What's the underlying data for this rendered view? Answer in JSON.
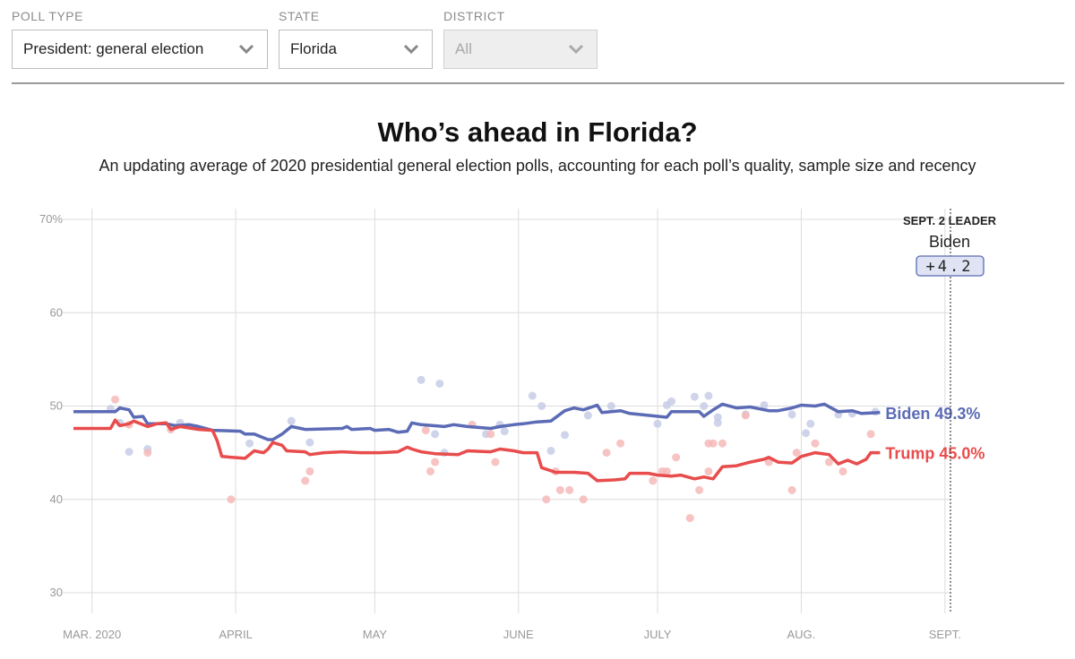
{
  "filters": {
    "poll_type": {
      "label": "POLL TYPE",
      "value": "President: general election"
    },
    "state": {
      "label": "STATE",
      "value": "Florida"
    },
    "district": {
      "label": "DISTRICT",
      "value": "All"
    }
  },
  "colors": {
    "biden": "#5b6bb5",
    "trump": "#e84c4c",
    "biden_dot": "#c7cce6",
    "trump_dot": "#f6b8b8",
    "grid": "#dcdcdc"
  },
  "chart_data": {
    "type": "line",
    "title": "Who’s ahead in Florida?",
    "subtitle": "An updating average of 2020 presidential general election polls, accounting for each poll’s quality, sample size and recency",
    "ylim": [
      30,
      70
    ],
    "yticks": [
      30,
      40,
      50,
      60,
      70
    ],
    "ytick_labels": [
      "30",
      "40",
      "50",
      "60",
      "70%"
    ],
    "x_domain": [
      "2020-02-26",
      "2020-09-02"
    ],
    "months": [
      {
        "label": "MAR. 2020",
        "date": "2020-03-01"
      },
      {
        "label": "APRIL",
        "date": "2020-04-01"
      },
      {
        "label": "MAY",
        "date": "2020-05-01"
      },
      {
        "label": "JUNE",
        "date": "2020-06-01"
      },
      {
        "label": "JULY",
        "date": "2020-07-01"
      },
      {
        "label": "AUG.",
        "date": "2020-08-01"
      },
      {
        "label": "SEPT.",
        "date": "2020-09-01"
      }
    ],
    "series": [
      {
        "name": "Biden",
        "end_label": "Biden 49.3%",
        "end_value": 49.3,
        "points": [
          [
            0,
            49.4
          ],
          [
            9,
            49.4
          ],
          [
            10,
            49.8
          ],
          [
            12,
            49.6
          ],
          [
            13,
            48.8
          ],
          [
            15,
            48.9
          ],
          [
            16,
            48.1
          ],
          [
            18,
            48.1
          ],
          [
            20,
            48.1
          ],
          [
            22,
            47.9
          ],
          [
            25,
            48.0
          ],
          [
            27,
            47.8
          ],
          [
            30,
            47.4
          ],
          [
            36,
            47.3
          ],
          [
            37,
            47.0
          ],
          [
            39,
            47.0
          ],
          [
            40,
            46.8
          ],
          [
            42,
            46.4
          ],
          [
            43,
            46.4
          ],
          [
            45,
            47.0
          ],
          [
            46,
            47.4
          ],
          [
            47,
            47.8
          ],
          [
            49,
            47.6
          ],
          [
            50,
            47.5
          ],
          [
            58,
            47.6
          ],
          [
            59,
            47.8
          ],
          [
            60,
            47.5
          ],
          [
            64,
            47.6
          ],
          [
            65,
            47.4
          ],
          [
            68,
            47.5
          ],
          [
            70,
            47.2
          ],
          [
            72,
            47.3
          ],
          [
            73,
            48.2
          ],
          [
            75,
            48.0
          ],
          [
            80,
            47.8
          ],
          [
            82,
            48.0
          ],
          [
            85,
            47.8
          ],
          [
            90,
            47.6
          ],
          [
            92,
            47.8
          ],
          [
            95,
            48.0
          ],
          [
            97,
            48.1
          ],
          [
            100,
            48.3
          ],
          [
            103,
            48.4
          ],
          [
            106,
            49.5
          ],
          [
            108,
            49.8
          ],
          [
            110,
            49.6
          ],
          [
            113,
            50.1
          ],
          [
            114,
            49.3
          ],
          [
            118,
            49.5
          ],
          [
            120,
            49.2
          ],
          [
            124,
            49.0
          ],
          [
            128,
            48.8
          ],
          [
            129,
            49.4
          ],
          [
            135,
            49.4
          ],
          [
            136,
            48.9
          ],
          [
            138,
            49.6
          ],
          [
            140,
            50.2
          ],
          [
            143,
            49.8
          ],
          [
            146,
            49.9
          ],
          [
            150,
            49.5
          ],
          [
            152,
            49.5
          ],
          [
            155,
            49.8
          ],
          [
            157,
            50.1
          ],
          [
            160,
            50.0
          ],
          [
            162,
            50.2
          ],
          [
            165,
            49.4
          ],
          [
            168,
            49.5
          ],
          [
            170,
            49.2
          ],
          [
            174,
            49.3
          ]
        ]
      },
      {
        "name": "Trump",
        "end_label": "Trump 45.0%",
        "end_value": 45.0,
        "points": [
          [
            0,
            47.6
          ],
          [
            8,
            47.6
          ],
          [
            9,
            48.5
          ],
          [
            10,
            47.9
          ],
          [
            12,
            48.1
          ],
          [
            13,
            48.4
          ],
          [
            14,
            48.2
          ],
          [
            16,
            47.8
          ],
          [
            18,
            48.1
          ],
          [
            20,
            48.2
          ],
          [
            21,
            47.5
          ],
          [
            23,
            47.8
          ],
          [
            27,
            47.5
          ],
          [
            30,
            47.4
          ],
          [
            31,
            46.3
          ],
          [
            32,
            44.6
          ],
          [
            37,
            44.4
          ],
          [
            39,
            45.2
          ],
          [
            41,
            45.0
          ],
          [
            42,
            45.4
          ],
          [
            43,
            46.1
          ],
          [
            45,
            45.8
          ],
          [
            46,
            45.2
          ],
          [
            50,
            45.1
          ],
          [
            51,
            44.8
          ],
          [
            54,
            45.0
          ],
          [
            58,
            45.1
          ],
          [
            62,
            45.0
          ],
          [
            66,
            45.0
          ],
          [
            70,
            45.1
          ],
          [
            72,
            45.6
          ],
          [
            73,
            45.4
          ],
          [
            75,
            45.1
          ],
          [
            78,
            44.9
          ],
          [
            83,
            44.8
          ],
          [
            85,
            45.2
          ],
          [
            90,
            45.1
          ],
          [
            92,
            45.4
          ],
          [
            95,
            45.2
          ],
          [
            97,
            45.0
          ],
          [
            100,
            45.0
          ],
          [
            101,
            43.4
          ],
          [
            104,
            42.9
          ],
          [
            108,
            42.9
          ],
          [
            111,
            42.8
          ],
          [
            113,
            42.0
          ],
          [
            117,
            42.1
          ],
          [
            119,
            42.2
          ],
          [
            120,
            42.8
          ],
          [
            124,
            42.8
          ],
          [
            126,
            42.6
          ],
          [
            129,
            42.5
          ],
          [
            131,
            42.6
          ],
          [
            134,
            42.2
          ],
          [
            136,
            42.4
          ],
          [
            138,
            42.2
          ],
          [
            140,
            43.5
          ],
          [
            143,
            43.6
          ],
          [
            146,
            44.0
          ],
          [
            149,
            44.3
          ],
          [
            150,
            44.5
          ],
          [
            152,
            44.0
          ],
          [
            155,
            43.9
          ],
          [
            157,
            44.6
          ],
          [
            160,
            45.0
          ],
          [
            163,
            44.8
          ],
          [
            165,
            43.8
          ],
          [
            167,
            44.2
          ],
          [
            169,
            43.8
          ],
          [
            171,
            44.3
          ],
          [
            172,
            45.0
          ],
          [
            174,
            45.0
          ]
        ]
      }
    ],
    "polls_biden": [
      [
        8,
        49.7
      ],
      [
        10,
        48.2
      ],
      [
        12,
        45.1
      ],
      [
        16,
        45.4
      ],
      [
        23,
        48.2
      ],
      [
        38,
        46.0
      ],
      [
        47,
        48.4
      ],
      [
        51,
        46.1
      ],
      [
        75,
        52.8
      ],
      [
        78,
        47.0
      ],
      [
        79,
        52.4
      ],
      [
        80,
        45.0
      ],
      [
        89,
        47.0
      ],
      [
        92,
        48.0
      ],
      [
        93,
        47.3
      ],
      [
        99,
        51.1
      ],
      [
        101,
        50.0
      ],
      [
        103,
        45.2
      ],
      [
        106,
        46.9
      ],
      [
        111,
        49.0
      ],
      [
        116,
        50.0
      ],
      [
        126,
        48.1
      ],
      [
        128,
        50.1
      ],
      [
        129,
        50.5
      ],
      [
        134,
        51.0
      ],
      [
        136,
        50.0
      ],
      [
        137,
        51.1
      ],
      [
        139,
        48.8
      ],
      [
        139,
        48.2
      ],
      [
        145,
        49.1
      ],
      [
        149,
        50.1
      ],
      [
        155,
        49.1
      ],
      [
        158,
        47.1
      ],
      [
        159,
        48.1
      ],
      [
        165,
        49.1
      ],
      [
        168,
        49.2
      ],
      [
        173,
        49.4
      ]
    ],
    "polls_trump": [
      [
        9,
        50.7
      ],
      [
        12,
        48.0
      ],
      [
        16,
        45.0
      ],
      [
        21,
        47.5
      ],
      [
        34,
        40.0
      ],
      [
        50,
        42.0
      ],
      [
        51,
        43.0
      ],
      [
        76,
        47.4
      ],
      [
        77,
        43.0
      ],
      [
        78,
        44.0
      ],
      [
        86,
        48.0
      ],
      [
        90,
        47.0
      ],
      [
        91,
        44.0
      ],
      [
        102,
        40.0
      ],
      [
        104,
        43.0
      ],
      [
        105,
        41.0
      ],
      [
        107,
        41.0
      ],
      [
        110,
        40.0
      ],
      [
        115,
        45.0
      ],
      [
        118,
        46.0
      ],
      [
        125,
        42.0
      ],
      [
        127,
        43.0
      ],
      [
        128,
        43.0
      ],
      [
        130,
        44.5
      ],
      [
        133,
        38.0
      ],
      [
        135,
        41.0
      ],
      [
        137,
        43.0
      ],
      [
        137,
        46.0
      ],
      [
        138,
        46.0
      ],
      [
        140,
        46.0
      ],
      [
        145,
        49.0
      ],
      [
        150,
        44.0
      ],
      [
        155,
        41.0
      ],
      [
        156,
        45.0
      ],
      [
        160,
        46.0
      ],
      [
        163,
        44.0
      ],
      [
        166,
        43.0
      ],
      [
        172,
        47.0
      ]
    ],
    "leader": {
      "label": "SEPT. 2 LEADER",
      "name": "Biden",
      "margin": "+4.2"
    }
  }
}
